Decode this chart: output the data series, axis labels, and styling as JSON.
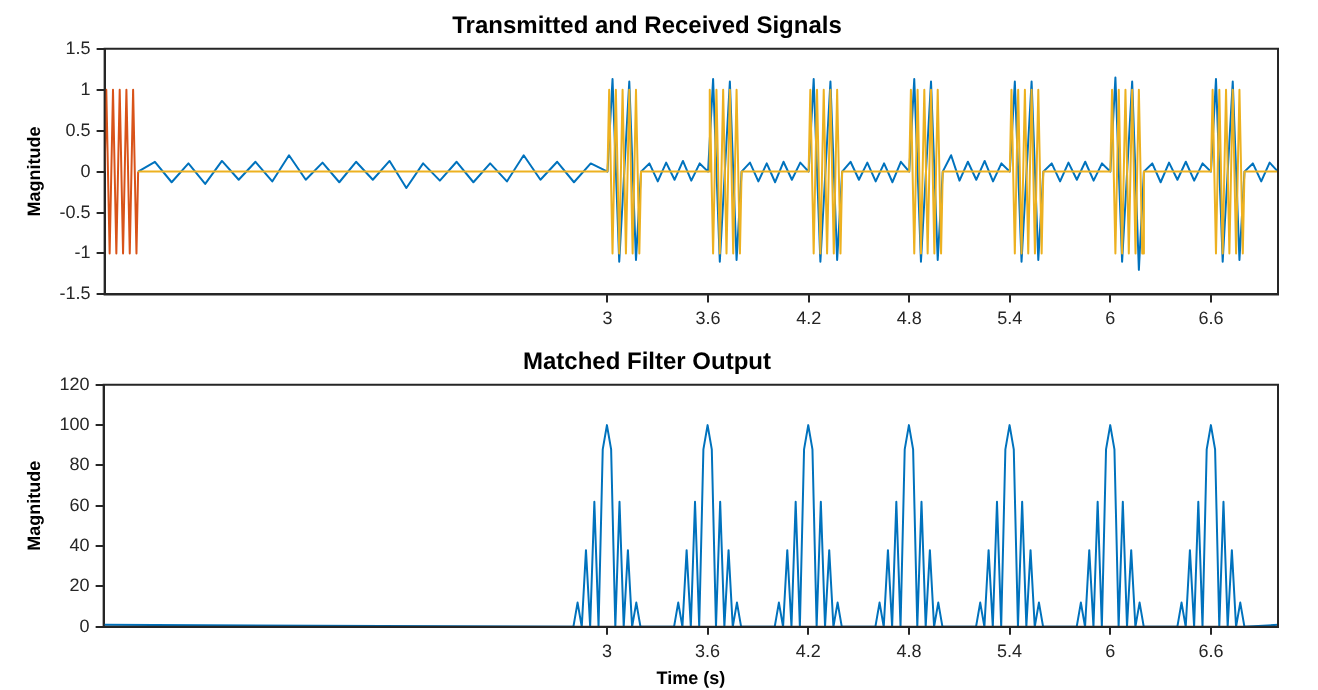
{
  "chart_data": [
    {
      "type": "line",
      "title": "Transmitted and Received Signals",
      "ylabel": "Magnitude",
      "xlim": [
        0,
        7
      ],
      "ylim": [
        -1.5,
        1.5
      ],
      "xticks": [
        3,
        3.6,
        4.2,
        4.8,
        5.4,
        6,
        6.6
      ],
      "yticks": [
        -1.5,
        -1,
        -0.5,
        0,
        0.5,
        1,
        1.5
      ],
      "series": [
        {
          "color": "#0072bd",
          "x": [
            0.2,
            0.3,
            0.4,
            0.5,
            0.6,
            0.7,
            0.8,
            0.9,
            1.0,
            1.1,
            1.2,
            1.3,
            1.4,
            1.5,
            1.6,
            1.7,
            1.8,
            1.9,
            2.0,
            2.1,
            2.2,
            2.3,
            2.4,
            2.5,
            2.6,
            2.7,
            2.8,
            2.9,
            3.0,
            3.03,
            3.07,
            3.13,
            3.17,
            3.2,
            3.25,
            3.3,
            3.35,
            3.4,
            3.45,
            3.5,
            3.55,
            3.6,
            3.63,
            3.67,
            3.73,
            3.77,
            3.8,
            3.85,
            3.9,
            3.95,
            4.0,
            4.05,
            4.1,
            4.15,
            4.2,
            4.23,
            4.27,
            4.33,
            4.37,
            4.4,
            4.45,
            4.5,
            4.55,
            4.6,
            4.65,
            4.7,
            4.75,
            4.8,
            4.83,
            4.87,
            4.93,
            4.97,
            5.0,
            5.05,
            5.1,
            5.15,
            5.2,
            5.25,
            5.3,
            5.35,
            5.4,
            5.43,
            5.47,
            5.53,
            5.57,
            5.6,
            5.65,
            5.7,
            5.75,
            5.8,
            5.85,
            5.9,
            5.95,
            6.0,
            6.03,
            6.07,
            6.13,
            6.17,
            6.2,
            6.25,
            6.3,
            6.35,
            6.4,
            6.45,
            6.5,
            6.55,
            6.6,
            6.63,
            6.67,
            6.73,
            6.77,
            6.8,
            6.85,
            6.9,
            6.95,
            7.0
          ],
          "values": [
            0,
            0.12,
            -0.13,
            0.1,
            -0.15,
            0.13,
            -0.1,
            0.12,
            -0.12,
            0.2,
            -0.1,
            0.11,
            -0.13,
            0.12,
            -0.1,
            0.13,
            -0.2,
            0.1,
            -0.11,
            0.12,
            -0.13,
            0.1,
            -0.12,
            0.2,
            -0.1,
            0.12,
            -0.13,
            0.1,
            0,
            1.13,
            -1.1,
            1.1,
            -1.08,
            0,
            0.1,
            -0.12,
            0.11,
            -0.1,
            0.13,
            -0.11,
            0.1,
            0,
            1.13,
            -1.1,
            1.1,
            -1.08,
            0,
            0.11,
            -0.12,
            0.1,
            -0.13,
            0.12,
            -0.1,
            0.11,
            0,
            1.13,
            -1.1,
            1.1,
            -1.08,
            0,
            0.12,
            -0.1,
            0.11,
            -0.12,
            0.1,
            -0.13,
            0.12,
            0,
            1.13,
            -1.1,
            1.1,
            -1.08,
            0,
            0.2,
            -0.11,
            0.12,
            -0.1,
            0.13,
            -0.12,
            0.1,
            0,
            1.1,
            -1.1,
            1.1,
            -1.08,
            0,
            0.1,
            -0.12,
            0.11,
            -0.1,
            0.12,
            -0.11,
            0.1,
            0,
            1.15,
            -1.1,
            1.1,
            -1.2,
            0,
            0.1,
            -0.13,
            0.11,
            -0.1,
            0.12,
            -0.11,
            0.1,
            0,
            1.13,
            -1.1,
            1.1,
            -1.08,
            0,
            0.1,
            -0.12,
            0.11,
            0
          ]
        },
        {
          "color": "#d95319",
          "x": [
            0,
            0.01,
            0.03,
            0.05,
            0.07,
            0.09,
            0.11,
            0.13,
            0.15,
            0.17,
            0.19,
            0.2
          ],
          "values": [
            0,
            1,
            -1,
            1,
            -1,
            1,
            -1,
            1,
            -1,
            1,
            -1,
            0
          ]
        },
        {
          "color": "#edb120",
          "x": [
            0.2,
            3.0,
            3.01,
            3.03,
            3.05,
            3.07,
            3.09,
            3.11,
            3.13,
            3.15,
            3.17,
            3.19,
            3.2,
            3.6,
            3.61,
            3.63,
            3.65,
            3.67,
            3.69,
            3.71,
            3.73,
            3.75,
            3.77,
            3.79,
            3.8,
            4.2,
            4.21,
            4.23,
            4.25,
            4.27,
            4.29,
            4.31,
            4.33,
            4.35,
            4.37,
            4.39,
            4.4,
            4.8,
            4.81,
            4.83,
            4.85,
            4.87,
            4.89,
            4.91,
            4.93,
            4.95,
            4.97,
            4.99,
            5.0,
            5.4,
            5.41,
            5.43,
            5.45,
            5.47,
            5.49,
            5.51,
            5.53,
            5.55,
            5.57,
            5.59,
            5.6,
            6.0,
            6.01,
            6.03,
            6.05,
            6.07,
            6.09,
            6.11,
            6.13,
            6.15,
            6.17,
            6.19,
            6.2,
            6.6,
            6.61,
            6.63,
            6.65,
            6.67,
            6.69,
            6.71,
            6.73,
            6.75,
            6.77,
            6.79,
            6.8,
            7.0
          ],
          "values": [
            0,
            0,
            1,
            -1,
            1,
            -1,
            1,
            -1,
            1,
            -1,
            1,
            -1,
            0,
            0,
            1,
            -1,
            1,
            -1,
            1,
            -1,
            1,
            -1,
            1,
            -1,
            0,
            0,
            1,
            -1,
            1,
            -1,
            1,
            -1,
            1,
            -1,
            1,
            -1,
            0,
            0,
            1,
            -1,
            1,
            -1,
            1,
            -1,
            1,
            -1,
            1,
            -1,
            0,
            0,
            1,
            -1,
            1,
            -1,
            1,
            -1,
            1,
            -1,
            1,
            -1,
            0,
            0,
            1,
            -1,
            1,
            -1,
            1,
            -1,
            1,
            -1,
            1,
            -1,
            0,
            0,
            1,
            -1,
            1,
            -1,
            1,
            -1,
            1,
            -1,
            1,
            -1,
            0,
            0
          ]
        }
      ]
    },
    {
      "type": "line",
      "title": "Matched Filter Output",
      "xlabel": "Time (s)",
      "ylabel": "Magnitude",
      "xlim": [
        0,
        7
      ],
      "ylim": [
        0,
        120
      ],
      "xticks": [
        3,
        3.6,
        4.2,
        4.8,
        5.4,
        6,
        6.6
      ],
      "yticks": [
        0,
        20,
        40,
        60,
        80,
        100,
        120
      ],
      "series": [
        {
          "color": "#0072bd",
          "x": [
            0,
            2.8,
            2.825,
            2.85,
            2.875,
            2.9,
            2.925,
            2.95,
            2.975,
            3.0,
            3.025,
            3.05,
            3.075,
            3.1,
            3.125,
            3.15,
            3.175,
            3.2,
            3.4,
            3.425,
            3.45,
            3.475,
            3.5,
            3.525,
            3.55,
            3.575,
            3.6,
            3.625,
            3.65,
            3.675,
            3.7,
            3.725,
            3.75,
            3.775,
            3.8,
            4.0,
            4.025,
            4.05,
            4.075,
            4.1,
            4.125,
            4.15,
            4.175,
            4.2,
            4.225,
            4.25,
            4.275,
            4.3,
            4.325,
            4.35,
            4.375,
            4.4,
            4.6,
            4.625,
            4.65,
            4.675,
            4.7,
            4.725,
            4.75,
            4.775,
            4.8,
            4.825,
            4.85,
            4.875,
            4.9,
            4.925,
            4.95,
            4.975,
            5.0,
            5.2,
            5.225,
            5.25,
            5.275,
            5.3,
            5.325,
            5.35,
            5.375,
            5.4,
            5.425,
            5.45,
            5.475,
            5.5,
            5.525,
            5.55,
            5.575,
            5.6,
            5.8,
            5.825,
            5.85,
            5.875,
            5.9,
            5.925,
            5.95,
            5.975,
            6.0,
            6.025,
            6.05,
            6.075,
            6.1,
            6.125,
            6.15,
            6.175,
            6.2,
            6.4,
            6.425,
            6.45,
            6.475,
            6.5,
            6.525,
            6.55,
            6.575,
            6.6,
            6.625,
            6.65,
            6.675,
            6.7,
            6.725,
            6.75,
            6.775,
            6.8,
            7.0
          ],
          "values": [
            1,
            0,
            12,
            0,
            38,
            0,
            62,
            0,
            88,
            100,
            88,
            0,
            62,
            0,
            38,
            0,
            12,
            0,
            0,
            12,
            0,
            38,
            0,
            62,
            0,
            88,
            100,
            88,
            0,
            62,
            0,
            38,
            0,
            12,
            0,
            0,
            12,
            0,
            38,
            0,
            62,
            0,
            88,
            100,
            88,
            0,
            62,
            0,
            38,
            0,
            12,
            0,
            0,
            12,
            0,
            38,
            0,
            62,
            0,
            88,
            100,
            88,
            0,
            62,
            0,
            38,
            0,
            12,
            0,
            0,
            12,
            0,
            38,
            0,
            62,
            0,
            88,
            100,
            88,
            0,
            62,
            0,
            38,
            0,
            12,
            0,
            0,
            12,
            0,
            38,
            0,
            62,
            0,
            88,
            100,
            88,
            0,
            62,
            0,
            38,
            0,
            12,
            0,
            0,
            12,
            0,
            38,
            0,
            62,
            0,
            88,
            100,
            88,
            0,
            62,
            0,
            38,
            0,
            12,
            0,
            1
          ]
        }
      ]
    }
  ]
}
